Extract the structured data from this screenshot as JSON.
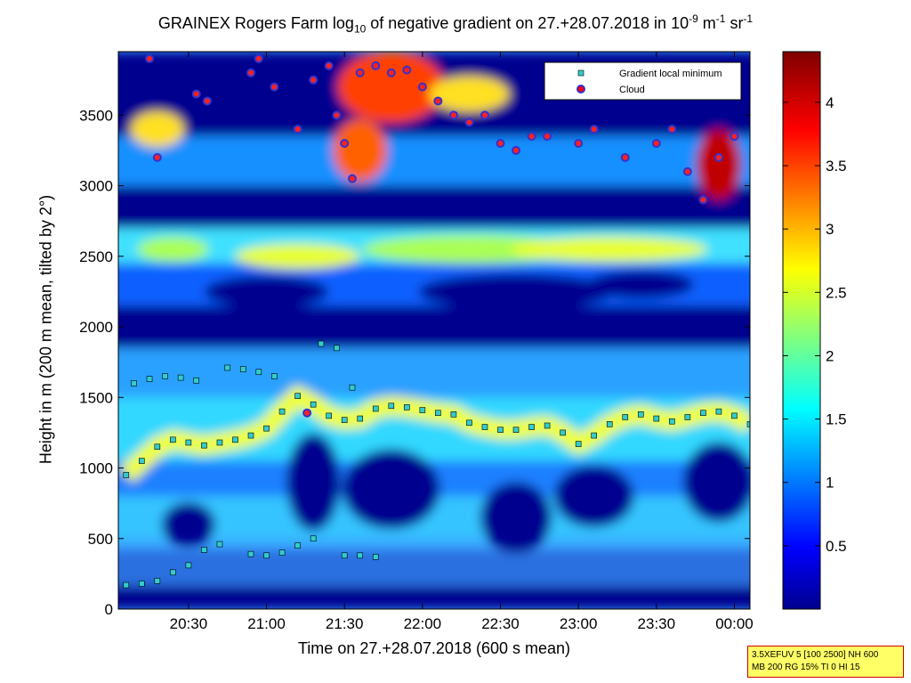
{
  "chart_data": {
    "type": "heatmap",
    "title": {
      "prefix": "GRAINEX Rogers Farm log",
      "sub": "10",
      "middle": " of negative gradient on 27.+28.07.2018 in 10",
      "sup1": "-9",
      "unit1": " m",
      "sup2": "-1",
      "unit2": " sr",
      "sup3": "-1"
    },
    "xlabel": "Time on 27.+28.07.2018 (600 s mean)",
    "ylabel": "Height in m (200 m mean, tilted by 2°)",
    "x_ticks": [
      "20:30",
      "21:00",
      "21:30",
      "22:00",
      "22:30",
      "23:00",
      "23:30",
      "00:00"
    ],
    "x_tick_hours": [
      20.5,
      21.0,
      21.5,
      22.0,
      22.5,
      23.0,
      23.5,
      24.0
    ],
    "xlim_hours": [
      20.05,
      24.1
    ],
    "y_ticks": [
      0,
      500,
      1000,
      1500,
      2000,
      2500,
      3000,
      3500
    ],
    "ylim": [
      0,
      3950
    ],
    "colorbar": {
      "ticks": [
        0.5,
        1,
        1.5,
        2,
        2.5,
        3,
        3.5,
        4
      ],
      "range": [
        0,
        4.4
      ],
      "colormap": "jet",
      "colors": [
        "#00008f",
        "#0000ff",
        "#00ffff",
        "#ffff00",
        "#ff0000",
        "#800000"
      ]
    },
    "legend": {
      "placement": "top-right",
      "entries": [
        {
          "label": "Gradient local minimum",
          "marker": "square",
          "color": "#33cccc"
        },
        {
          "label": "Cloud",
          "marker": "circle",
          "color": "#ff0000",
          "edge": "#3333cc"
        }
      ]
    },
    "series": [
      {
        "name": "Gradient local minimum",
        "role": "boundary-layer-top",
        "x": [
          20.1,
          20.2,
          20.3,
          20.4,
          20.5,
          20.6,
          20.7,
          20.8,
          20.9,
          21.0,
          21.1,
          21.2,
          21.3,
          21.4,
          21.5,
          21.6,
          21.7,
          21.8,
          21.9,
          22.0,
          22.1,
          22.2,
          22.3,
          22.4,
          22.5,
          22.6,
          22.7,
          22.8,
          22.9,
          23.0,
          23.1,
          23.2,
          23.3,
          23.4,
          23.5,
          23.6,
          23.7,
          23.8,
          23.9,
          24.0,
          24.1
        ],
        "y": [
          950,
          1050,
          1150,
          1200,
          1180,
          1160,
          1180,
          1200,
          1230,
          1280,
          1400,
          1510,
          1450,
          1370,
          1340,
          1350,
          1420,
          1440,
          1430,
          1410,
          1390,
          1380,
          1320,
          1290,
          1270,
          1270,
          1290,
          1300,
          1250,
          1170,
          1230,
          1310,
          1360,
          1380,
          1350,
          1330,
          1360,
          1390,
          1400,
          1370,
          1310
        ]
      },
      {
        "name": "Gradient local minimum",
        "role": "residual-layer",
        "x": [
          20.15,
          20.25,
          20.35,
          20.45,
          20.55,
          20.65,
          20.75,
          20.85,
          20.95,
          21.05,
          21.15,
          21.25,
          21.35,
          21.45,
          21.55
        ],
        "y": [
          1600,
          1630,
          1650,
          1640,
          1620,
          null,
          1710,
          1700,
          1680,
          1650,
          null,
          null,
          1880,
          1850,
          1570
        ]
      },
      {
        "name": "Gradient local minimum",
        "role": "low-layer",
        "x": [
          20.1,
          20.2,
          20.3,
          20.4,
          20.5,
          20.6,
          20.7,
          20.8,
          20.9,
          21.0,
          21.1,
          21.2,
          21.3,
          21.4,
          21.5,
          21.6,
          21.7
        ],
        "y": [
          170,
          180,
          200,
          260,
          310,
          420,
          460,
          null,
          390,
          380,
          400,
          450,
          500,
          null,
          380,
          380,
          370
        ]
      },
      {
        "name": "Cloud",
        "x": [
          20.25,
          20.3,
          20.55,
          20.62,
          20.9,
          20.95,
          21.05,
          21.2,
          21.3,
          21.4,
          21.45,
          21.5,
          21.55,
          21.6,
          21.7,
          21.8,
          21.9,
          22.0,
          22.1,
          22.2,
          22.3,
          22.4,
          22.5,
          22.6,
          22.7,
          22.8,
          23.0,
          23.1,
          23.3,
          23.5,
          23.6,
          23.7,
          23.8,
          23.9,
          24.0
        ],
        "y": [
          3900,
          3200,
          3650,
          3600,
          3800,
          3900,
          3700,
          3400,
          3750,
          3850,
          3500,
          3300,
          3050,
          3800,
          3850,
          3800,
          3820,
          3700,
          3600,
          3500,
          3450,
          3500,
          3300,
          3250,
          3350,
          3350,
          3300,
          3400,
          3200,
          3300,
          3400,
          3100,
          2900,
          3200,
          3350
        ]
      },
      {
        "name": "Cloud",
        "role": "boundary-layer-top",
        "x": [
          21.26
        ],
        "y": [
          1390
        ]
      }
    ]
  }
}
